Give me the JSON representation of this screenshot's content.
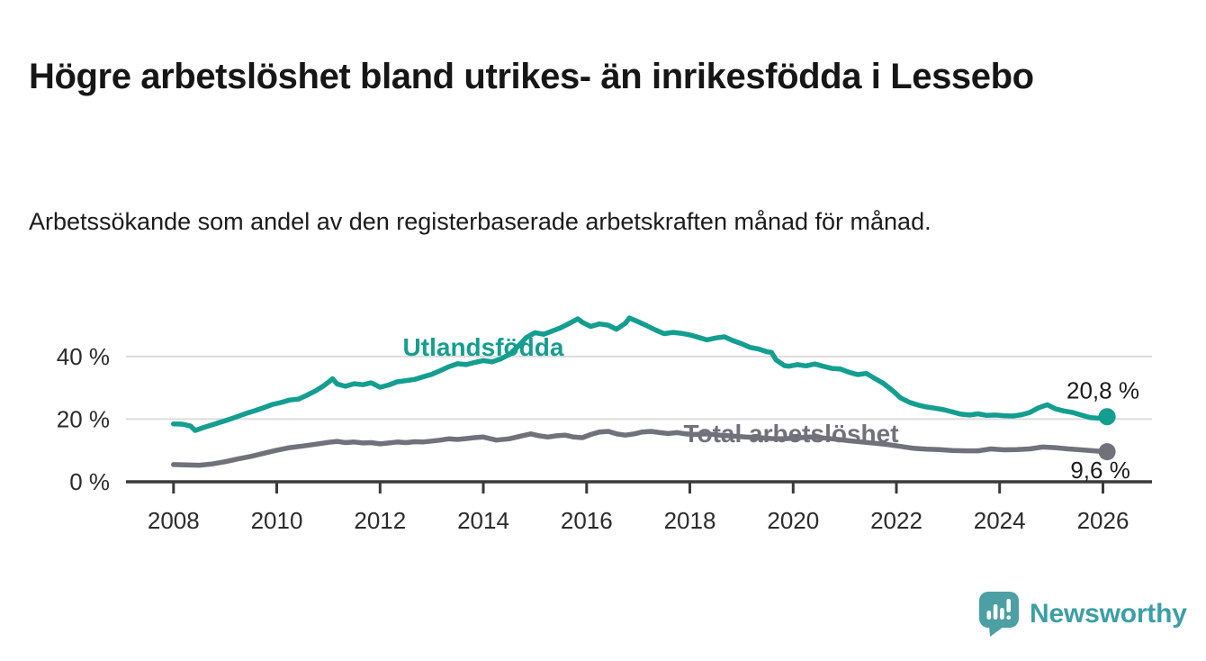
{
  "header": {
    "title": "Högre arbetslöshet bland utrikes- än inrikesfödda i Lessebo",
    "subtitle": "Arbetssökande som andel av den registerbaserade arbetskraften månad för månad."
  },
  "chart_data": {
    "type": "line",
    "title": "Högre arbetslöshet bland utrikes- än inrikesfödda i Lessebo",
    "subtitle": "Arbetssökande som andel av den registerbaserade arbetskraften månad för månad.",
    "xlabel": "",
    "ylabel": "",
    "xlim": [
      2007.08,
      2026.95
    ],
    "ylim": [
      0,
      57.5
    ],
    "grid": "horizontal-only",
    "legend_position": "inline-labels",
    "colors": {
      "grid": "#dcdcdc",
      "axis": "#3a3a3a",
      "tick_label": "#2b2b2b",
      "value_label": "#1b1b1b"
    },
    "x_ticks": [
      {
        "v": 2008,
        "label": "2008"
      },
      {
        "v": 2010,
        "label": "2010"
      },
      {
        "v": 2012,
        "label": "2012"
      },
      {
        "v": 2014,
        "label": "2014"
      },
      {
        "v": 2016,
        "label": "2016"
      },
      {
        "v": 2018,
        "label": "2018"
      },
      {
        "v": 2020,
        "label": "2020"
      },
      {
        "v": 2022,
        "label": "2022"
      },
      {
        "v": 2024,
        "label": "2024"
      },
      {
        "v": 2026,
        "label": "2026"
      }
    ],
    "y_ticks": [
      {
        "v": 0,
        "label": "0 %"
      },
      {
        "v": 20,
        "label": "20 %"
      },
      {
        "v": 40,
        "label": "40 %"
      }
    ],
    "series": [
      {
        "name": "Utlandsfödda",
        "color": "#139e90",
        "end_value_label": "20,8 %",
        "points": [
          [
            2008.0,
            18.5
          ],
          [
            2008.17,
            18.4
          ],
          [
            2008.33,
            17.8
          ],
          [
            2008.42,
            16.4
          ],
          [
            2008.58,
            17.3
          ],
          [
            2008.75,
            18.2
          ],
          [
            2008.92,
            19.1
          ],
          [
            2009.08,
            19.9
          ],
          [
            2009.25,
            20.9
          ],
          [
            2009.42,
            21.9
          ],
          [
            2009.58,
            22.7
          ],
          [
            2009.75,
            23.7
          ],
          [
            2009.92,
            24.7
          ],
          [
            2010.08,
            25.3
          ],
          [
            2010.25,
            26.1
          ],
          [
            2010.42,
            26.4
          ],
          [
            2010.58,
            27.6
          ],
          [
            2010.75,
            29.0
          ],
          [
            2010.92,
            30.8
          ],
          [
            2011.0,
            31.8
          ],
          [
            2011.08,
            32.9
          ],
          [
            2011.17,
            31.2
          ],
          [
            2011.33,
            30.5
          ],
          [
            2011.5,
            31.3
          ],
          [
            2011.67,
            31.0
          ],
          [
            2011.83,
            31.6
          ],
          [
            2012.0,
            30.2
          ],
          [
            2012.17,
            30.9
          ],
          [
            2012.33,
            31.9
          ],
          [
            2012.5,
            32.3
          ],
          [
            2012.67,
            32.7
          ],
          [
            2012.83,
            33.5
          ],
          [
            2013.0,
            34.3
          ],
          [
            2013.17,
            35.5
          ],
          [
            2013.33,
            36.7
          ],
          [
            2013.5,
            37.7
          ],
          [
            2013.67,
            37.4
          ],
          [
            2013.83,
            38.1
          ],
          [
            2014.0,
            38.7
          ],
          [
            2014.17,
            38.3
          ],
          [
            2014.33,
            39.2
          ],
          [
            2014.5,
            40.6
          ],
          [
            2014.67,
            43.2
          ],
          [
            2014.83,
            46.0
          ],
          [
            2015.0,
            47.6
          ],
          [
            2015.17,
            47.1
          ],
          [
            2015.33,
            48.1
          ],
          [
            2015.5,
            49.2
          ],
          [
            2015.67,
            50.6
          ],
          [
            2015.83,
            52.0
          ],
          [
            2015.92,
            50.9
          ],
          [
            2016.08,
            49.6
          ],
          [
            2016.25,
            50.4
          ],
          [
            2016.42,
            50.0
          ],
          [
            2016.58,
            48.7
          ],
          [
            2016.75,
            50.6
          ],
          [
            2016.83,
            52.3
          ],
          [
            2017.0,
            51.1
          ],
          [
            2017.17,
            49.8
          ],
          [
            2017.33,
            48.5
          ],
          [
            2017.5,
            47.3
          ],
          [
            2017.67,
            47.7
          ],
          [
            2017.83,
            47.4
          ],
          [
            2018.0,
            46.9
          ],
          [
            2018.17,
            46.1
          ],
          [
            2018.33,
            45.3
          ],
          [
            2018.5,
            45.9
          ],
          [
            2018.67,
            46.3
          ],
          [
            2018.83,
            45.1
          ],
          [
            2019.0,
            44.1
          ],
          [
            2019.17,
            42.9
          ],
          [
            2019.33,
            42.4
          ],
          [
            2019.5,
            41.5
          ],
          [
            2019.58,
            41.3
          ],
          [
            2019.67,
            38.9
          ],
          [
            2019.83,
            37.1
          ],
          [
            2019.92,
            36.9
          ],
          [
            2020.08,
            37.4
          ],
          [
            2020.25,
            37.0
          ],
          [
            2020.42,
            37.6
          ],
          [
            2020.58,
            36.9
          ],
          [
            2020.75,
            36.2
          ],
          [
            2020.92,
            36.0
          ],
          [
            2021.08,
            35.0
          ],
          [
            2021.25,
            34.2
          ],
          [
            2021.42,
            34.6
          ],
          [
            2021.58,
            33.0
          ],
          [
            2021.75,
            31.4
          ],
          [
            2021.92,
            29.2
          ],
          [
            2022.08,
            26.8
          ],
          [
            2022.25,
            25.4
          ],
          [
            2022.42,
            24.5
          ],
          [
            2022.58,
            23.9
          ],
          [
            2022.75,
            23.5
          ],
          [
            2022.92,
            23.0
          ],
          [
            2023.08,
            22.3
          ],
          [
            2023.25,
            21.6
          ],
          [
            2023.42,
            21.3
          ],
          [
            2023.58,
            21.7
          ],
          [
            2023.75,
            21.2
          ],
          [
            2023.92,
            21.3
          ],
          [
            2024.08,
            21.1
          ],
          [
            2024.25,
            21.0
          ],
          [
            2024.42,
            21.4
          ],
          [
            2024.58,
            22.1
          ],
          [
            2024.75,
            23.6
          ],
          [
            2024.92,
            24.6
          ],
          [
            2025.08,
            23.3
          ],
          [
            2025.25,
            22.6
          ],
          [
            2025.42,
            22.1
          ],
          [
            2025.58,
            21.3
          ],
          [
            2025.75,
            20.5
          ],
          [
            2025.92,
            20.3
          ],
          [
            2026.08,
            20.8
          ]
        ]
      },
      {
        "name": "Total arbetslöshet",
        "color": "#71717b",
        "end_value_label": "9,6 %",
        "points": [
          [
            2008.0,
            5.5
          ],
          [
            2008.25,
            5.4
          ],
          [
            2008.5,
            5.3
          ],
          [
            2008.75,
            5.7
          ],
          [
            2009.0,
            6.4
          ],
          [
            2009.25,
            7.3
          ],
          [
            2009.5,
            8.1
          ],
          [
            2009.75,
            9.1
          ],
          [
            2010.0,
            10.1
          ],
          [
            2010.25,
            10.9
          ],
          [
            2010.5,
            11.4
          ],
          [
            2010.75,
            12.0
          ],
          [
            2011.0,
            12.6
          ],
          [
            2011.17,
            12.9
          ],
          [
            2011.33,
            12.5
          ],
          [
            2011.5,
            12.7
          ],
          [
            2011.67,
            12.4
          ],
          [
            2011.83,
            12.5
          ],
          [
            2012.0,
            12.1
          ],
          [
            2012.17,
            12.4
          ],
          [
            2012.33,
            12.7
          ],
          [
            2012.5,
            12.5
          ],
          [
            2012.67,
            12.8
          ],
          [
            2012.83,
            12.7
          ],
          [
            2013.0,
            13.0
          ],
          [
            2013.17,
            13.3
          ],
          [
            2013.33,
            13.7
          ],
          [
            2013.5,
            13.5
          ],
          [
            2013.67,
            13.8
          ],
          [
            2013.83,
            14.1
          ],
          [
            2014.0,
            14.3
          ],
          [
            2014.25,
            13.3
          ],
          [
            2014.5,
            13.7
          ],
          [
            2014.75,
            14.7
          ],
          [
            2014.92,
            15.3
          ],
          [
            2015.08,
            14.7
          ],
          [
            2015.25,
            14.3
          ],
          [
            2015.42,
            14.7
          ],
          [
            2015.58,
            14.9
          ],
          [
            2015.75,
            14.3
          ],
          [
            2015.92,
            14.1
          ],
          [
            2016.08,
            15.1
          ],
          [
            2016.25,
            15.9
          ],
          [
            2016.42,
            16.1
          ],
          [
            2016.58,
            15.3
          ],
          [
            2016.75,
            14.9
          ],
          [
            2016.92,
            15.3
          ],
          [
            2017.08,
            15.9
          ],
          [
            2017.25,
            16.1
          ],
          [
            2017.42,
            15.7
          ],
          [
            2017.58,
            15.4
          ],
          [
            2017.75,
            15.7
          ],
          [
            2017.92,
            15.3
          ],
          [
            2018.08,
            15.1
          ],
          [
            2018.33,
            15.3
          ],
          [
            2018.58,
            14.9
          ],
          [
            2018.83,
            14.6
          ],
          [
            2019.08,
            14.3
          ],
          [
            2019.33,
            14.1
          ],
          [
            2019.58,
            13.8
          ],
          [
            2019.83,
            13.7
          ],
          [
            2020.08,
            14.0
          ],
          [
            2020.33,
            14.3
          ],
          [
            2020.58,
            14.0
          ],
          [
            2020.83,
            13.6
          ],
          [
            2021.08,
            13.1
          ],
          [
            2021.33,
            12.7
          ],
          [
            2021.58,
            12.3
          ],
          [
            2021.83,
            11.9
          ],
          [
            2022.08,
            11.3
          ],
          [
            2022.33,
            10.7
          ],
          [
            2022.58,
            10.4
          ],
          [
            2022.83,
            10.3
          ],
          [
            2023.08,
            10.0
          ],
          [
            2023.33,
            9.9
          ],
          [
            2023.58,
            9.9
          ],
          [
            2023.83,
            10.5
          ],
          [
            2024.08,
            10.2
          ],
          [
            2024.33,
            10.3
          ],
          [
            2024.58,
            10.5
          ],
          [
            2024.83,
            11.1
          ],
          [
            2025.08,
            10.9
          ],
          [
            2025.33,
            10.5
          ],
          [
            2025.58,
            10.2
          ],
          [
            2025.83,
            9.9
          ],
          [
            2026.08,
            9.6
          ]
        ]
      }
    ],
    "annotations": [
      {
        "text": "Utlandsfödda",
        "x": 2014.0,
        "y": 40.3,
        "color": "#139e90",
        "bold": true,
        "size": 28
      },
      {
        "text": "Total arbetslöshet",
        "x": 2019.96,
        "y": 12.6,
        "color": "#71717b",
        "bold": true,
        "size": 28
      },
      {
        "text": "20,8 %",
        "x": 2026.0,
        "y": 26.6,
        "color": "#1b1b1b",
        "bold": false,
        "size": 26
      },
      {
        "text": "9,6 %",
        "x": 2025.95,
        "y": 1.1,
        "color": "#1b1b1b",
        "bold": false,
        "size": 26
      }
    ]
  },
  "footer": {
    "brand": "Newsworthy",
    "logo_icon": "newsworthy-speech-bubble-bar-chart-icon",
    "brand_color": "#3c9ea6",
    "icon_color": "#4c9fa3"
  }
}
